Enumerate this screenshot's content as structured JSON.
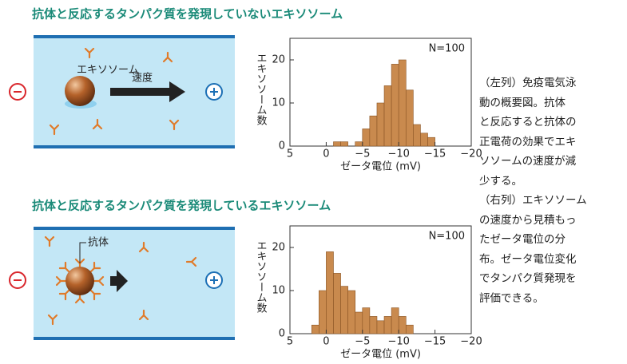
{
  "chart_data": [
    {
      "type": "histogram",
      "title": "抗体と反応するタンパク質を発現していないエキソソーム",
      "annotation": "N=100",
      "xlabel": "ゼータ電位 (mV)",
      "ylabel": "エキソソーム数",
      "color": "#c98a4e",
      "bins": [
        -1,
        -2,
        -3,
        -4,
        -5,
        -6,
        -7,
        -8,
        -9,
        -10,
        -11,
        -12,
        -13,
        -14,
        -15
      ],
      "values": [
        1,
        1,
        0,
        1,
        4,
        7,
        10,
        14,
        19,
        20,
        13,
        5,
        3,
        2
      ],
      "xlim": [
        5,
        -20
      ],
      "xticks": [
        5,
        0,
        {
          "value": -5,
          "label": "−5"
        },
        {
          "value": -10,
          "label": "−10"
        },
        {
          "value": -15,
          "label": "−15"
        },
        {
          "value": -20,
          "label": "−20"
        }
      ],
      "ylim": [
        0,
        25
      ],
      "yticks": [
        0,
        10,
        20
      ]
    },
    {
      "type": "histogram",
      "title": "抗体と反応するタンパク質を発現しているエキソソーム",
      "annotation": "N=100",
      "xlabel": "ゼータ電位 (mV)",
      "ylabel": "エキソソーム数",
      "color": "#c98a4e",
      "bins": [
        2,
        1,
        0,
        -1,
        -2,
        -3,
        -4,
        -5,
        -6,
        -7,
        -8,
        -9,
        -10,
        -11,
        -12
      ],
      "values": [
        2,
        10,
        19,
        14,
        11,
        10,
        5,
        6,
        4,
        3,
        4,
        6,
        4,
        2
      ],
      "xlim": [
        5,
        -20
      ],
      "xticks": [
        5,
        0,
        {
          "value": -5,
          "label": "−5"
        },
        {
          "value": -10,
          "label": "−10"
        },
        {
          "value": -15,
          "label": "−15"
        },
        {
          "value": -20,
          "label": "−20"
        }
      ],
      "ylim": [
        0,
        25
      ],
      "yticks": [
        0,
        10,
        20
      ]
    }
  ],
  "diagrams": {
    "exosome": "エキソソーム",
    "velocity": "速度",
    "antibody": "抗体"
  },
  "caption": [
    "（左列）免疫電気泳",
    "動の概要図。抗体",
    "と反応すると抗体の",
    "正電荷の効果でエキ",
    "ソソームの速度が減",
    "少する。",
    "（右列）エキソソーム",
    "の速度から見積もっ",
    "たゼータ電位の分",
    "布。ゼータ電位変化",
    "でタンパク質発現を",
    "評価できる。"
  ]
}
